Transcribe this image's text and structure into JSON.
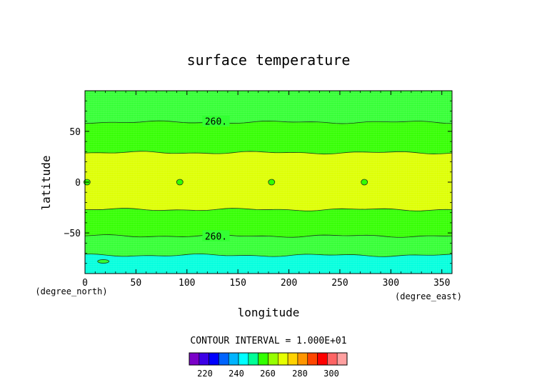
{
  "chart_data": {
    "type": "heatmap",
    "title": "surface temperature",
    "xlabel": "longitude",
    "ylabel": "latitude",
    "x_unit": "(degree_east)",
    "y_unit": "(degree_north)",
    "xlim": [
      0,
      360
    ],
    "ylim": [
      -90,
      90
    ],
    "x_ticks": [
      "0",
      "50",
      "100",
      "150",
      "200",
      "250",
      "300",
      "350"
    ],
    "y_ticks": [
      "50",
      "0",
      "-50"
    ],
    "contour_interval_label": "CONTOUR INTERVAL = 1.000E+01",
    "contour_labels": [
      "260.",
      "260."
    ],
    "colorbar": {
      "levels": [
        220,
        240,
        260,
        280,
        300
      ],
      "tick_labels": [
        "220",
        "240",
        "260",
        "280",
        "300"
      ],
      "colors": [
        "#7a00c8",
        "#3c00e6",
        "#0000ff",
        "#0064ff",
        "#00b4ff",
        "#00ffff",
        "#00ff96",
        "#32ff00",
        "#96ff00",
        "#e6ff00",
        "#ffd200",
        "#ff9600",
        "#ff4600",
        "#ff0000",
        "#ff6464",
        "#ffa0a0"
      ]
    },
    "bands": [
      {
        "range": "250-260",
        "color": "#33ff33",
        "lat_from": 90,
        "lat_to": 59
      },
      {
        "range": "260-270",
        "color": "#33ff00",
        "lat_from": 59,
        "lat_to": 29
      },
      {
        "range": "270-280",
        "color": "#ddff00",
        "lat_from": 29,
        "lat_to": -27
      },
      {
        "range": "260-270",
        "color": "#33ff00",
        "lat_from": -27,
        "lat_to": -53
      },
      {
        "range": "250-260",
        "color": "#33ff33",
        "lat_from": -53,
        "lat_to": -72
      },
      {
        "range": "240-250",
        "color": "#00ffdd",
        "lat_from": -72,
        "lat_to": -90
      }
    ],
    "small_regions": [
      {
        "lon": 2,
        "lat": 0,
        "color": "#33ff00"
      },
      {
        "lon": 93,
        "lat": 0,
        "color": "#33ff00"
      },
      {
        "lon": 183,
        "lat": 0,
        "color": "#33ff00"
      },
      {
        "lon": 274,
        "lat": 0,
        "color": "#33ff00"
      },
      {
        "lon": 18,
        "lat": -78,
        "color": "#33ff33"
      }
    ]
  }
}
